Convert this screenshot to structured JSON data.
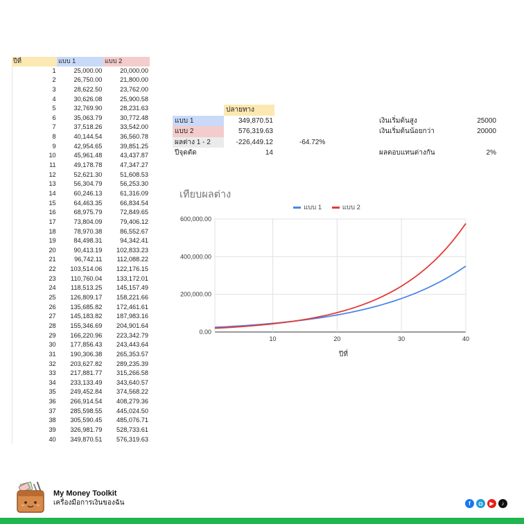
{
  "table": {
    "headers": [
      "ปีที่",
      "แบบ 1",
      "แบบ 2"
    ],
    "rows": [
      [
        "1",
        "25,000.00",
        "20,000.00"
      ],
      [
        "2",
        "26,750.00",
        "21,800.00"
      ],
      [
        "3",
        "28,622.50",
        "23,762.00"
      ],
      [
        "4",
        "30,626.08",
        "25,900.58"
      ],
      [
        "5",
        "32,769.90",
        "28,231.63"
      ],
      [
        "6",
        "35,063.79",
        "30,772.48"
      ],
      [
        "7",
        "37,518.26",
        "33,542.00"
      ],
      [
        "8",
        "40,144.54",
        "36,560.78"
      ],
      [
        "9",
        "42,954.65",
        "39,851.25"
      ],
      [
        "10",
        "45,961.48",
        "43,437.87"
      ],
      [
        "11",
        "49,178.78",
        "47,347.27"
      ],
      [
        "12",
        "52,621.30",
        "51,608.53"
      ],
      [
        "13",
        "56,304.79",
        "56,253.30"
      ],
      [
        "14",
        "60,246.13",
        "61,316.09"
      ],
      [
        "15",
        "64,463.35",
        "66,834.54"
      ],
      [
        "16",
        "68,975.79",
        "72,849.65"
      ],
      [
        "17",
        "73,804.09",
        "79,406.12"
      ],
      [
        "18",
        "78,970.38",
        "86,552.67"
      ],
      [
        "19",
        "84,498.31",
        "94,342.41"
      ],
      [
        "20",
        "90,413.19",
        "102,833.23"
      ],
      [
        "21",
        "96,742.11",
        "112,088.22"
      ],
      [
        "22",
        "103,514.06",
        "122,176.15"
      ],
      [
        "23",
        "110,760.04",
        "133,172.01"
      ],
      [
        "24",
        "118,513.25",
        "145,157.49"
      ],
      [
        "25",
        "126,809.17",
        "158,221.66"
      ],
      [
        "26",
        "135,685.82",
        "172,461.61"
      ],
      [
        "27",
        "145,183.82",
        "187,983.16"
      ],
      [
        "28",
        "155,346.69",
        "204,901.64"
      ],
      [
        "29",
        "166,220.96",
        "223,342.79"
      ],
      [
        "30",
        "177,856.43",
        "243,443.64"
      ],
      [
        "31",
        "190,306.38",
        "265,353.57"
      ],
      [
        "32",
        "203,627.82",
        "289,235.39"
      ],
      [
        "33",
        "217,881.77",
        "315,266.58"
      ],
      [
        "34",
        "233,133.49",
        "343,640.57"
      ],
      [
        "35",
        "249,452.84",
        "374,568.22"
      ],
      [
        "36",
        "266,914.54",
        "408,279.36"
      ],
      [
        "37",
        "285,598.55",
        "445,024.50"
      ],
      [
        "38",
        "305,590.45",
        "485,076.71"
      ],
      [
        "39",
        "326,981.79",
        "528,733.61"
      ],
      [
        "40",
        "349,870.51",
        "576,319.63"
      ]
    ]
  },
  "summary": {
    "header": "ปลายทาง",
    "plan1_label": "แบบ 1",
    "plan1_value": "349,870.51",
    "plan2_label": "แบบ 2",
    "plan2_value": "576,319.63",
    "diff_label": "ผลต่าง 1 - 2",
    "diff_value": "-226,449.12",
    "diff_percent": "-64.72%",
    "cross_label": "ปีจุดตัด",
    "cross_value": "14",
    "high_start_label": "เงินเริ่มต้นสูง",
    "high_start_value": "25000",
    "low_start_label": "เงินเริ่มต้นน้อยกว่า",
    "low_start_value": "20000",
    "return_diff_label": "ผลตอบแทนต่างกัน",
    "return_diff_value": "2%"
  },
  "chart_data": {
    "type": "line",
    "title": "เทียบผลต่าง",
    "xlabel": "ปีที่",
    "ylabel": "",
    "xlim": [
      1,
      40
    ],
    "ylim": [
      0,
      600000
    ],
    "x_ticks": [
      "10",
      "20",
      "30",
      "40"
    ],
    "y_ticks": [
      "0.00",
      "200,000.00",
      "400,000.00",
      "600,000.00"
    ],
    "legend_position": "top",
    "grid": true,
    "x": [
      1,
      2,
      3,
      4,
      5,
      6,
      7,
      8,
      9,
      10,
      11,
      12,
      13,
      14,
      15,
      16,
      17,
      18,
      19,
      20,
      21,
      22,
      23,
      24,
      25,
      26,
      27,
      28,
      29,
      30,
      31,
      32,
      33,
      34,
      35,
      36,
      37,
      38,
      39,
      40
    ],
    "series": [
      {
        "name": "แบบ 1",
        "color": "#4a86e8",
        "values": [
          25000.0,
          26750.0,
          28622.5,
          30626.08,
          32769.9,
          35063.79,
          37518.26,
          40144.54,
          42954.65,
          45961.48,
          49178.78,
          52621.3,
          56304.79,
          60246.13,
          64463.35,
          68975.79,
          73804.09,
          78970.38,
          84498.31,
          90413.19,
          96742.11,
          103514.06,
          110760.04,
          118513.25,
          126809.17,
          135685.82,
          145183.82,
          155346.69,
          166220.96,
          177856.43,
          190306.38,
          203627.82,
          217881.77,
          233133.49,
          249452.84,
          266914.54,
          285598.55,
          305590.45,
          326981.79,
          349870.51
        ]
      },
      {
        "name": "แบบ 2",
        "color": "#e53935",
        "values": [
          20000.0,
          21800.0,
          23762.0,
          25900.58,
          28231.63,
          30772.48,
          33542.0,
          36560.78,
          39851.25,
          43437.87,
          47347.27,
          51608.53,
          56253.3,
          61316.09,
          66834.54,
          72849.65,
          79406.12,
          86552.67,
          94342.41,
          102833.23,
          112088.22,
          122176.15,
          133172.01,
          145157.49,
          158221.66,
          172461.61,
          187983.16,
          204901.64,
          223342.79,
          243443.64,
          265353.57,
          289235.39,
          315266.58,
          343640.57,
          374568.22,
          408279.36,
          445024.5,
          485076.71,
          528733.61,
          576319.63
        ]
      }
    ]
  },
  "footer": {
    "brand_title": "My Money Toolkit",
    "brand_subtitle": "เครื่องมือการเงินของฉัน",
    "socials": [
      "facebook-icon",
      "website-icon",
      "youtube-icon",
      "tiktok-icon"
    ]
  }
}
